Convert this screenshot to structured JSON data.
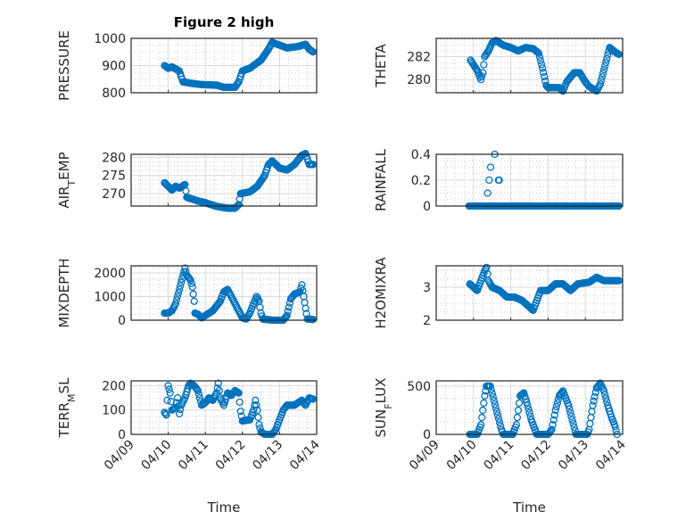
{
  "title": "Figure 2 high",
  "xlabel": "Time",
  "marker_color": "#0072BD",
  "x_ticks": [
    "04/09",
    "04/10",
    "04/11",
    "04/12",
    "04/13",
    "04/14"
  ],
  "x_tick_days": [
    9,
    10,
    11,
    12,
    13,
    14
  ],
  "chart_data": [
    {
      "type": "scatter",
      "ylabel": {
        "main": "PRESSURE"
      },
      "xlim": [
        9,
        14
      ],
      "ylim": [
        800,
        1000
      ],
      "yticks": [
        800,
        900,
        1000
      ],
      "ytick_labels": [
        "800",
        "900",
        "1000"
      ],
      "x": [
        9.9,
        10.0,
        10.1,
        10.3,
        10.4,
        10.6,
        10.9,
        11.3,
        11.5,
        11.8,
        11.9,
        12.0,
        12.2,
        12.5,
        12.7,
        12.8,
        13.0,
        13.2,
        13.5,
        13.7,
        13.8,
        13.9
      ],
      "y": [
        900,
        890,
        895,
        880,
        840,
        835,
        830,
        828,
        820,
        820,
        840,
        880,
        890,
        920,
        960,
        985,
        975,
        965,
        970,
        978,
        960,
        950
      ]
    },
    {
      "type": "scatter",
      "ylabel": {
        "main": "THETA"
      },
      "xlim": [
        9,
        14
      ],
      "ylim": [
        278.85,
        283.6
      ],
      "yticks": [
        280,
        282
      ],
      "ytick_labels": [
        "280",
        "282"
      ],
      "x": [
        9.92,
        10.0,
        10.1,
        10.2,
        10.25,
        10.3,
        10.4,
        10.5,
        10.6,
        10.8,
        11.0,
        11.2,
        11.4,
        11.6,
        11.75,
        11.85,
        11.95,
        12.0,
        12.3,
        12.4,
        12.5,
        12.7,
        12.85,
        13.0,
        13.1,
        13.3,
        13.4,
        13.55,
        13.65,
        13.8,
        13.9
      ],
      "y": [
        281.7,
        281.3,
        280.8,
        280.0,
        280.6,
        282.0,
        282.5,
        283.2,
        283.4,
        283.0,
        282.8,
        282.5,
        282.8,
        282.7,
        282.3,
        281.0,
        279.5,
        279.3,
        279.3,
        279.0,
        279.8,
        280.6,
        280.6,
        279.8,
        279.4,
        279.0,
        279.6,
        281.5,
        282.8,
        282.4,
        282.2
      ]
    },
    {
      "type": "scatter",
      "ylabel": {
        "main": "AIR",
        "sub": "T",
        "rest": "EMP"
      },
      "xlim": [
        9,
        14
      ],
      "ylim": [
        266.6,
        280.8
      ],
      "yticks": [
        270,
        275,
        280
      ],
      "ytick_labels": [
        "270",
        "275",
        "280"
      ],
      "x": [
        9.9,
        10.0,
        10.1,
        10.2,
        10.3,
        10.45,
        10.5,
        10.8,
        11.0,
        11.3,
        11.6,
        11.8,
        11.9,
        11.95,
        12.2,
        12.4,
        12.6,
        12.7,
        12.8,
        13.0,
        13.2,
        13.4,
        13.6,
        13.7,
        13.8,
        13.9
      ],
      "y": [
        273,
        272,
        271,
        272,
        271.5,
        272.5,
        269,
        268,
        267.5,
        266.5,
        266,
        266,
        267,
        270,
        270.5,
        272,
        275,
        278,
        279,
        277,
        276.5,
        278,
        280.5,
        281,
        278,
        278
      ]
    },
    {
      "type": "scatter",
      "ylabel": {
        "main": "RAINFALL"
      },
      "xlim": [
        9,
        14
      ],
      "ylim": [
        0,
        0.4
      ],
      "yticks": [
        0,
        0.2,
        0.4
      ],
      "ytick_labels": [
        "0",
        "0.2",
        "0.4"
      ],
      "x": [
        9.88,
        10.38,
        10.42,
        13.9
      ],
      "y": [
        0,
        0,
        0,
        0
      ],
      "extra_points": {
        "x": [
          10.38,
          10.42,
          10.46,
          10.57,
          10.67,
          10.69
        ],
        "y": [
          0.1,
          0.2,
          0.3,
          0.4,
          0.2,
          0.2
        ]
      }
    },
    {
      "type": "scatter",
      "ylabel": {
        "main": "MIXDEPTH"
      },
      "xlim": [
        9,
        14
      ],
      "ylim": [
        0,
        2300
      ],
      "yticks": [
        0,
        1000,
        2000
      ],
      "ytick_labels": [
        "0",
        "1000",
        "2000"
      ],
      "x": [
        9.9,
        10.0,
        10.1,
        10.2,
        10.3,
        10.4,
        10.45,
        10.5,
        10.6,
        10.65,
        10.7,
        10.72,
        10.8,
        10.9,
        11.0,
        11.2,
        11.4,
        11.5,
        11.6,
        11.7,
        11.8,
        11.9,
        12.0,
        12.1,
        12.2,
        12.3,
        12.38,
        12.45,
        12.5,
        12.55,
        12.8,
        13.1,
        13.2,
        13.3,
        13.4,
        13.55,
        13.6,
        13.65,
        13.7,
        13.75,
        13.9
      ],
      "y": [
        300,
        300,
        400,
        700,
        1300,
        1900,
        2200,
        1900,
        1700,
        1400,
        800,
        300,
        250,
        100,
        200,
        400,
        800,
        1200,
        1300,
        1000,
        700,
        400,
        100,
        50,
        300,
        700,
        1000,
        800,
        300,
        50,
        0,
        0,
        200,
        900,
        1100,
        1200,
        1500,
        1000,
        500,
        50,
        30
      ]
    },
    {
      "type": "scatter",
      "ylabel": {
        "main": "H2OMIXRA"
      },
      "xlim": [
        9,
        14
      ],
      "ylim": [
        2,
        3.65
      ],
      "yticks": [
        2,
        3
      ],
      "ytick_labels": [
        "2",
        "3"
      ],
      "x": [
        9.9,
        10.0,
        10.1,
        10.2,
        10.3,
        10.35,
        10.4,
        10.5,
        10.7,
        10.9,
        11.1,
        11.3,
        11.5,
        11.6,
        11.7,
        11.8,
        12.0,
        12.2,
        12.4,
        12.6,
        12.8,
        13.1,
        13.3,
        13.5,
        13.9
      ],
      "y": [
        3.1,
        3.0,
        2.9,
        3.2,
        3.5,
        3.6,
        3.2,
        3.0,
        2.9,
        2.7,
        2.7,
        2.6,
        2.4,
        2.3,
        2.6,
        2.9,
        2.9,
        3.1,
        3.1,
        2.9,
        3.1,
        3.15,
        3.3,
        3.2,
        3.2
      ]
    },
    {
      "type": "scatter",
      "ylabel": {
        "main": "TERR",
        "sub": "M",
        "rest": "SL"
      },
      "xlim": [
        9,
        14
      ],
      "ylim": [
        0,
        220
      ],
      "yticks": [
        0,
        100,
        200
      ],
      "ytick_labels": [
        "0",
        "100",
        "200"
      ],
      "x": [
        9.9,
        9.95,
        10.0,
        10.05,
        10.1,
        10.2,
        10.25,
        10.3,
        10.35,
        10.45,
        10.55,
        10.6,
        10.7,
        10.8,
        10.85,
        10.9,
        11.0,
        11.1,
        11.2,
        11.3,
        11.35,
        11.4,
        11.5,
        11.6,
        11.7,
        11.8,
        11.9,
        11.95,
        12.0,
        12.2,
        12.3,
        12.35,
        12.4,
        12.45,
        12.5,
        12.6,
        12.8,
        12.9,
        13.0,
        13.1,
        13.2,
        13.4,
        13.6,
        13.7,
        13.8,
        13.9
      ],
      "y": [
        90,
        80,
        200,
        170,
        100,
        110,
        150,
        85,
        120,
        150,
        200,
        210,
        200,
        180,
        150,
        120,
        130,
        150,
        140,
        170,
        210,
        150,
        120,
        170,
        160,
        180,
        170,
        95,
        55,
        60,
        100,
        140,
        100,
        40,
        10,
        0,
        0,
        20,
        60,
        100,
        120,
        120,
        140,
        120,
        150,
        145
      ]
    },
    {
      "type": "scatter",
      "ylabel": {
        "main": "SUN",
        "sub": "F",
        "rest": "LUX"
      },
      "xlim": [
        9,
        14
      ],
      "ylim": [
        0,
        555
      ],
      "yticks": [
        0,
        500
      ],
      "ytick_labels": [
        "0",
        "500"
      ],
      "x": [
        9.9,
        10.1,
        10.2,
        10.25,
        10.3,
        10.35,
        10.45,
        10.55,
        10.65,
        10.75,
        10.8,
        11.05,
        11.15,
        11.25,
        11.35,
        11.45,
        11.55,
        11.65,
        11.7,
        12.0,
        12.1,
        12.2,
        12.3,
        12.4,
        12.55,
        12.65,
        12.75,
        13.05,
        13.1,
        13.2,
        13.3,
        13.4,
        13.5,
        13.6,
        13.7,
        13.8,
        13.85
      ],
      "y": [
        0,
        0,
        100,
        250,
        400,
        500,
        500,
        350,
        200,
        50,
        0,
        0,
        100,
        400,
        430,
        300,
        150,
        50,
        0,
        0,
        50,
        250,
        400,
        450,
        300,
        150,
        0,
        0,
        50,
        300,
        480,
        530,
        450,
        300,
        180,
        80,
        0
      ]
    }
  ]
}
